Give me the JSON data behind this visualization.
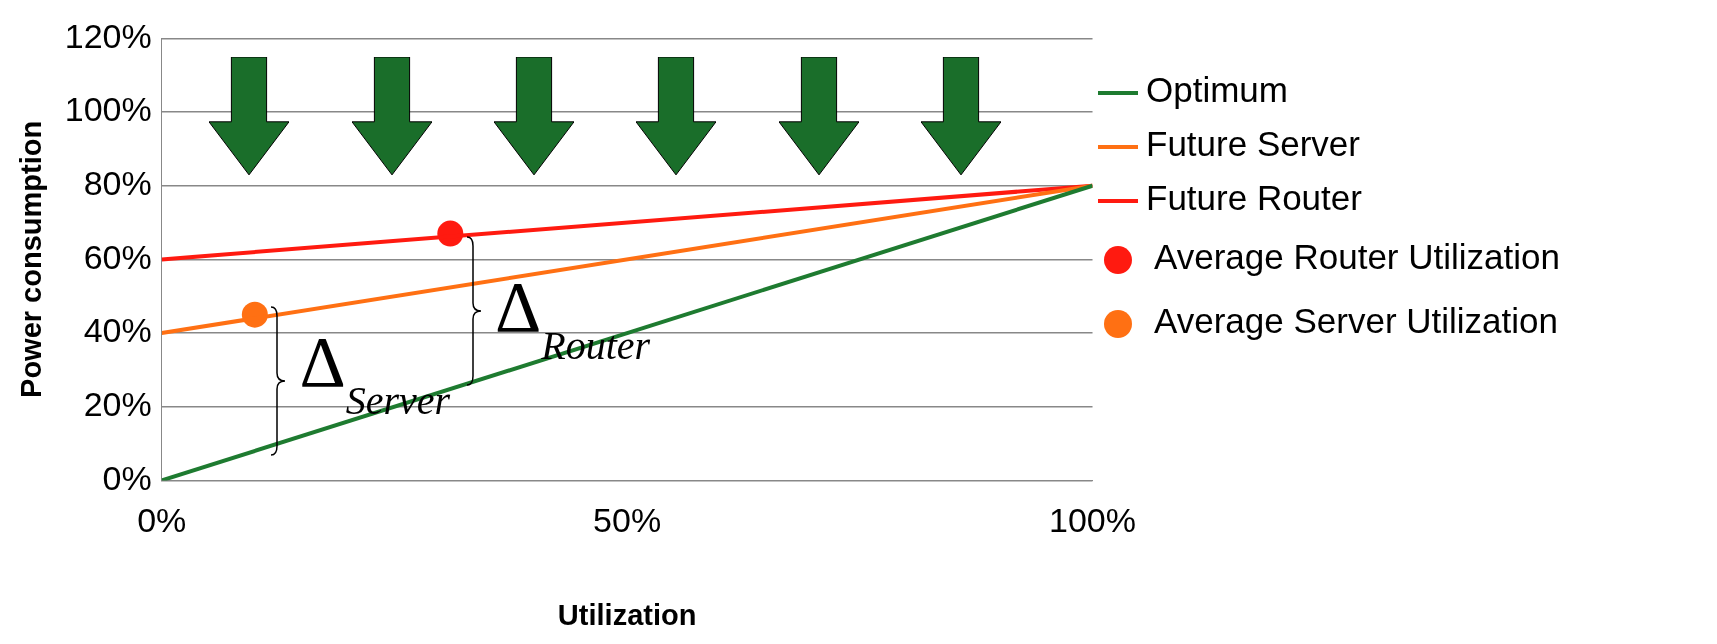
{
  "chart_data": {
    "type": "line",
    "xlabel": "Utilization",
    "ylabel": "Power consumption",
    "xlim": [
      0,
      100
    ],
    "ylim": [
      0,
      120
    ],
    "xticks": [
      {
        "value": 0,
        "label": "0%"
      },
      {
        "value": 50,
        "label": "50%"
      },
      {
        "value": 100,
        "label": "100%"
      }
    ],
    "yticks": [
      {
        "value": 0,
        "label": "0%"
      },
      {
        "value": 20,
        "label": "20%"
      },
      {
        "value": 40,
        "label": "40%"
      },
      {
        "value": 60,
        "label": "60%"
      },
      {
        "value": 80,
        "label": "80%"
      },
      {
        "value": 100,
        "label": "100%"
      },
      {
        "value": 120,
        "label": "120%"
      }
    ],
    "grid": "y",
    "legend": "right",
    "series": [
      {
        "name": "Optimum",
        "color": "#1e7b30",
        "x": [
          0,
          100
        ],
        "values": [
          0,
          80
        ]
      },
      {
        "name": "Future Server",
        "color": "#ff7013",
        "x": [
          0,
          100
        ],
        "values": [
          40,
          80
        ]
      },
      {
        "name": "Future Router",
        "color": "#ff1a10",
        "x": [
          0,
          100
        ],
        "values": [
          60,
          80
        ]
      },
      {
        "name": "Average Router Utilization",
        "type": "scatter",
        "color": "#ff1a10",
        "x": [
          31
        ],
        "values": [
          67
        ]
      },
      {
        "name": "Average Server Utilization",
        "type": "scatter",
        "color": "#ff7013",
        "x": [
          10
        ],
        "values": [
          45
        ]
      }
    ],
    "annotations": [
      "Δ$_{Router}$",
      "Δ$_{Server}$"
    ]
  }
}
